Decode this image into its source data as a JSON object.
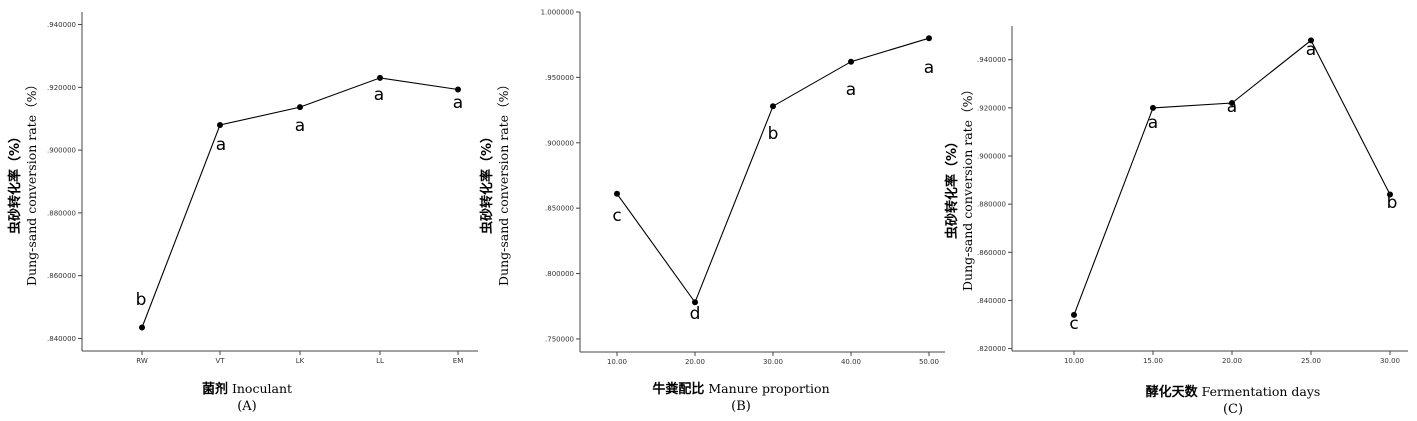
{
  "chart_data": [
    {
      "type": "line",
      "categories": [
        "RW",
        "VT",
        "LK",
        "LL",
        "EM"
      ],
      "values": [
        0.8435,
        0.908,
        0.9137,
        0.923,
        0.9193
      ],
      "significance": [
        "b",
        "a",
        "a",
        "a",
        "a"
      ],
      "ylim": [
        0.836,
        0.944
      ],
      "yticks": [
        0.84,
        0.86,
        0.88,
        0.9,
        0.92,
        0.94
      ],
      "ytick_labels": [
        ".840000",
        ".860000",
        ".880000",
        ".900000",
        ".920000",
        ".940000"
      ],
      "ylabel_cn": "虫砂转化率（%）",
      "ylabel_en": "Dung-sand conversion rate（%）",
      "xlabel_cn": "菌剂",
      "xlabel_en": "Inoculant",
      "panel": "(A)"
    },
    {
      "type": "line",
      "categories": [
        "10.00",
        "20.00",
        "30.00",
        "40.00",
        "50.00"
      ],
      "values": [
        0.861,
        0.778,
        0.928,
        0.962,
        0.98
      ],
      "significance": [
        "c",
        "d",
        "b",
        "a",
        "a"
      ],
      "ylim": [
        0.74,
        1.0
      ],
      "yticks": [
        0.75,
        0.8,
        0.85,
        0.9,
        0.95,
        1.0
      ],
      "ytick_labels": [
        ".750000",
        ".800000",
        ".850000",
        ".900000",
        ".950000",
        "1.000000"
      ],
      "ylabel_cn": "虫砂转化率（%）",
      "ylabel_en": "Dung-sand conversion rate（%）",
      "xlabel_cn": "牛粪配比",
      "xlabel_en": "Manure proportion",
      "panel": "(B)"
    },
    {
      "type": "line",
      "categories": [
        "10.00",
        "15.00",
        "20.00",
        "25.00",
        "30.00"
      ],
      "values": [
        0.834,
        0.92,
        0.922,
        0.948,
        0.884
      ],
      "significance": [
        "c",
        "a",
        "a",
        "a",
        "b"
      ],
      "ylim": [
        0.819,
        0.954
      ],
      "yticks": [
        0.82,
        0.84,
        0.86,
        0.88,
        0.9,
        0.92,
        0.94
      ],
      "ytick_labels": [
        ".820000",
        ".840000",
        ".860000",
        ".880000",
        ".900000",
        ".920000",
        ".940000"
      ],
      "ylabel_cn": "虫砂转化率（%）",
      "ylabel_en": "Dung-sand conversion rate（%）",
      "xlabel_cn": "酵化天数",
      "xlabel_en": "Fermentation days",
      "panel": "(C)"
    }
  ],
  "colors": {
    "axis": "#444444",
    "line": "#000000",
    "marker": "#000000"
  }
}
